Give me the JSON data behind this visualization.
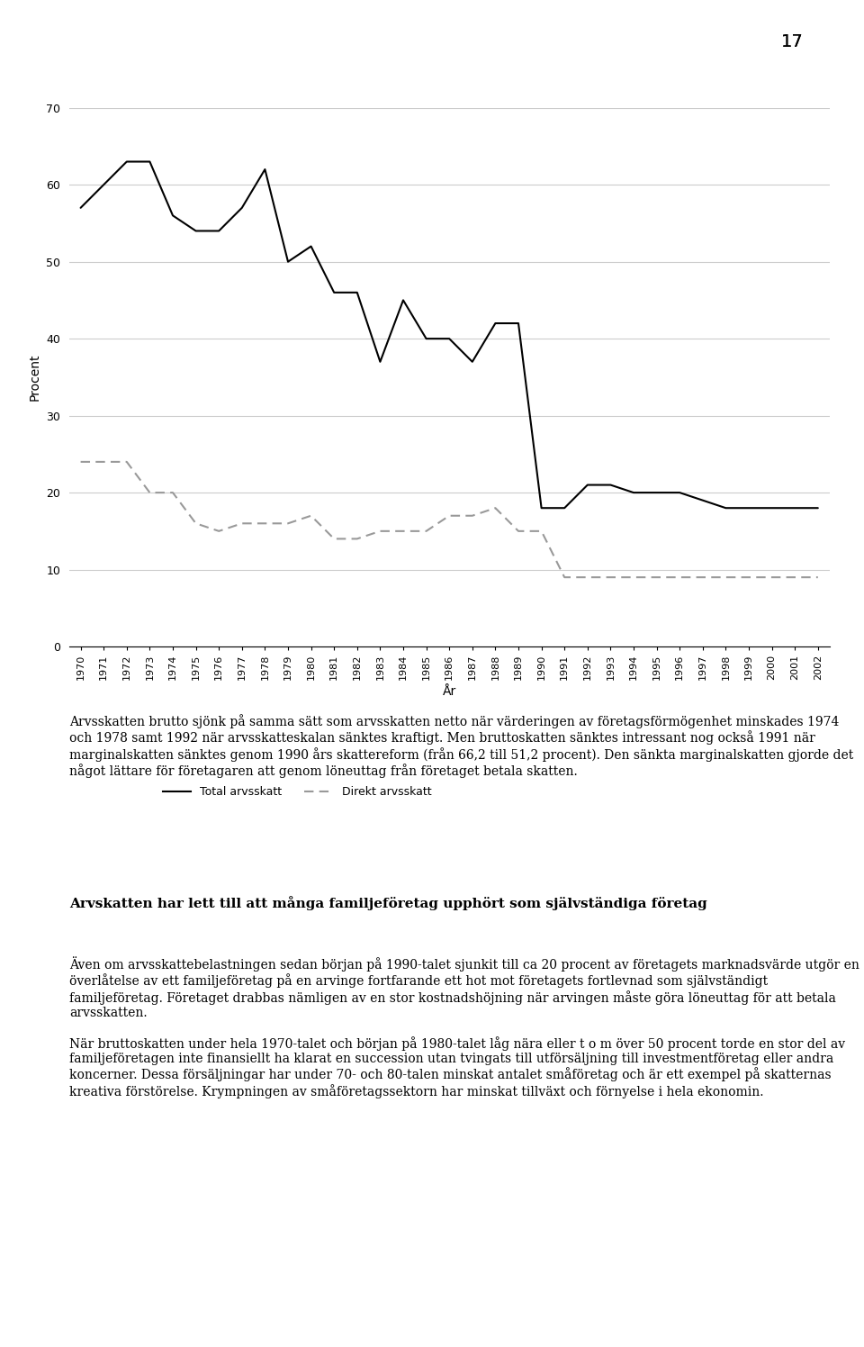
{
  "years": [
    1970,
    1971,
    1972,
    1973,
    1974,
    1975,
    1976,
    1977,
    1978,
    1979,
    1980,
    1981,
    1982,
    1983,
    1984,
    1985,
    1986,
    1987,
    1988,
    1989,
    1990,
    1991,
    1992,
    1993,
    1994,
    1995,
    1996,
    1997,
    1998,
    1999,
    2000,
    2001,
    2002
  ],
  "total_arvsskatt": [
    57,
    60,
    63,
    63,
    56,
    54,
    54,
    57,
    62,
    50,
    52,
    46,
    46,
    37,
    45,
    40,
    40,
    37,
    42,
    42,
    18,
    18,
    21,
    21,
    20,
    20,
    20,
    19,
    18,
    18,
    18,
    18,
    18
  ],
  "direkt_arvsskatt": [
    24,
    24,
    24,
    20,
    20,
    16,
    15,
    16,
    16,
    16,
    17,
    14,
    14,
    15,
    15,
    15,
    17,
    17,
    18,
    15,
    15,
    9,
    9,
    9,
    9,
    9,
    9,
    9,
    9,
    9,
    9,
    9,
    9
  ],
  "ylim": [
    0,
    70
  ],
  "yticks": [
    0,
    10,
    20,
    30,
    40,
    50,
    60,
    70
  ],
  "ylabel": "Procent",
  "xlabel": "År",
  "total_color": "#000000",
  "direkt_color": "#999999",
  "total_label": "Total arvsskatt",
  "direkt_label": "Direkt arvsskatt",
  "page_number": "17",
  "text_blocks": [
    {
      "text": "Arvsskatten brutto sjönk på samma sätt som arvsskatten netto när värderingen av företagsförmögenhet minskades 1974 och 1978 samt 1992 när arvsskatteskalan sänktes kraftigt. Men bruttoskatten sänktes intressant nog också 1991 när marginalskatten sänktes genom 1990 års skattereform (från 66,2 till 51,2 procent). Den sänkta marginalskatten gjorde det något lättare för företagaren att genom löneuttag från företaget betala skatten.",
      "fontsize": 11,
      "bold": false
    },
    {
      "text": "Arvskatten har lett till att många familjeföretag upphört som självständiga företag",
      "fontsize": 12,
      "bold": true
    },
    {
      "text": "Även om arvsskattebelastningen sedan början på 1990-talet sjunkit till ca 20 procent av företagets marknadsvärde utgör en överlåtelse av ett familjeföretag på en arvinge fortfarande ett hot mot företagets fortlevnad som självständigt familjeföretag. Företaget drabbas nämligen av en stor kostnadshöjning när arvingen måste göra löneuttag för att betala arvsskatten.\n\nNär bruttoskatten under hela 1970-talet och början på 1980-talet låg nära eller t o m över 50 procent torde en stor del av familjeföretagen inte finansiellt ha klarat en succession utan tvingats till utförsäljning till investmentföretag eller andra koncerner. Dessa försäljningar har under 70- och 80-talen minskat antalet småföretag och är ett exempel på skatternas kreativa förstörelse. Krympningen av småföretagssektorn har minskat tillväxt och förnyelse i hela ekonomin.",
      "fontsize": 11,
      "bold": false
    }
  ]
}
